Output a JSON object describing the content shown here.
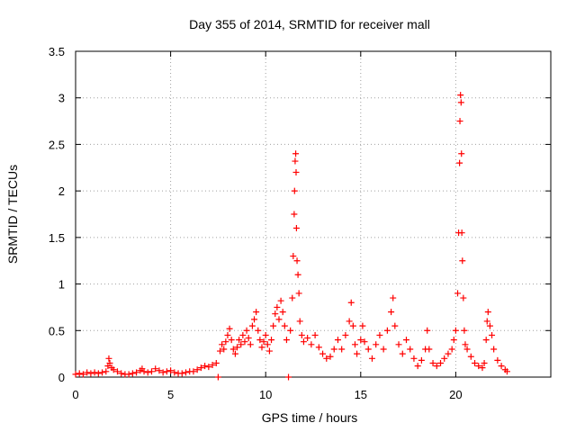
{
  "chart_data": {
    "type": "scatter",
    "title": "Day 355 of 2014, SRMTID for receiver mall",
    "xlabel": "GPS time / hours",
    "ylabel": "SRMTID / TECUs",
    "xlim": [
      0,
      25
    ],
    "ylim": [
      0,
      3.5
    ],
    "xticks": [
      0,
      5,
      10,
      15,
      20
    ],
    "xtick_labels": [
      "0",
      "5",
      "10",
      "15",
      "20"
    ],
    "yticks": [
      0,
      0.5,
      1,
      1.5,
      2,
      2.5,
      3,
      3.5
    ],
    "ytick_labels": [
      "0",
      "0.5",
      "1",
      "1.5",
      "2",
      "2.5",
      "3",
      "3.5"
    ],
    "grid": true,
    "marker": "+",
    "series_color": "#ff0000",
    "series": [
      {
        "name": "SRMTID",
        "points": [
          [
            0.0,
            0.03
          ],
          [
            0.2,
            0.04
          ],
          [
            0.4,
            0.03
          ],
          [
            0.6,
            0.05
          ],
          [
            0.8,
            0.04
          ],
          [
            1.0,
            0.05
          ],
          [
            1.2,
            0.04
          ],
          [
            1.4,
            0.05
          ],
          [
            1.6,
            0.06
          ],
          [
            1.7,
            0.12
          ],
          [
            1.75,
            0.2
          ],
          [
            1.8,
            0.15
          ],
          [
            1.9,
            0.1
          ],
          [
            2.0,
            0.08
          ],
          [
            2.2,
            0.06
          ],
          [
            2.4,
            0.04
          ],
          [
            2.6,
            0.03
          ],
          [
            2.8,
            0.03
          ],
          [
            3.0,
            0.04
          ],
          [
            3.2,
            0.05
          ],
          [
            3.4,
            0.07
          ],
          [
            3.5,
            0.09
          ],
          [
            3.6,
            0.06
          ],
          [
            3.8,
            0.05
          ],
          [
            4.0,
            0.06
          ],
          [
            4.2,
            0.09
          ],
          [
            4.4,
            0.07
          ],
          [
            4.6,
            0.05
          ],
          [
            4.8,
            0.06
          ],
          [
            5.0,
            0.07
          ],
          [
            5.2,
            0.05
          ],
          [
            5.4,
            0.04
          ],
          [
            5.6,
            0.04
          ],
          [
            5.8,
            0.05
          ],
          [
            6.0,
            0.06
          ],
          [
            6.2,
            0.06
          ],
          [
            6.4,
            0.08
          ],
          [
            6.6,
            0.1
          ],
          [
            6.8,
            0.12
          ],
          [
            7.0,
            0.11
          ],
          [
            7.2,
            0.13
          ],
          [
            7.4,
            0.15
          ],
          [
            7.5,
            0.0
          ],
          [
            7.6,
            0.28
          ],
          [
            7.7,
            0.35
          ],
          [
            7.8,
            0.3
          ],
          [
            7.9,
            0.38
          ],
          [
            8.0,
            0.45
          ],
          [
            8.1,
            0.52
          ],
          [
            8.2,
            0.4
          ],
          [
            8.3,
            0.3
          ],
          [
            8.4,
            0.25
          ],
          [
            8.5,
            0.32
          ],
          [
            8.6,
            0.4
          ],
          [
            8.7,
            0.35
          ],
          [
            8.8,
            0.45
          ],
          [
            8.9,
            0.38
          ],
          [
            9.0,
            0.5
          ],
          [
            9.1,
            0.42
          ],
          [
            9.2,
            0.35
          ],
          [
            9.3,
            0.55
          ],
          [
            9.4,
            0.62
          ],
          [
            9.5,
            0.7
          ],
          [
            9.6,
            0.5
          ],
          [
            9.7,
            0.4
          ],
          [
            9.8,
            0.32
          ],
          [
            9.9,
            0.38
          ],
          [
            10.0,
            0.45
          ],
          [
            10.1,
            0.35
          ],
          [
            10.2,
            0.28
          ],
          [
            10.3,
            0.4
          ],
          [
            10.4,
            0.55
          ],
          [
            10.5,
            0.68
          ],
          [
            10.6,
            0.75
          ],
          [
            10.7,
            0.62
          ],
          [
            10.8,
            0.82
          ],
          [
            10.9,
            0.7
          ],
          [
            11.0,
            0.55
          ],
          [
            11.1,
            0.4
          ],
          [
            11.2,
            0.0
          ],
          [
            11.3,
            0.5
          ],
          [
            11.4,
            0.85
          ],
          [
            11.45,
            1.3
          ],
          [
            11.5,
            1.75
          ],
          [
            11.52,
            2.0
          ],
          [
            11.55,
            2.32
          ],
          [
            11.58,
            2.4
          ],
          [
            11.6,
            2.2
          ],
          [
            11.62,
            1.6
          ],
          [
            11.65,
            1.25
          ],
          [
            11.7,
            1.1
          ],
          [
            11.75,
            0.9
          ],
          [
            11.8,
            0.6
          ],
          [
            11.9,
            0.45
          ],
          [
            12.0,
            0.38
          ],
          [
            12.2,
            0.42
          ],
          [
            12.4,
            0.35
          ],
          [
            12.6,
            0.45
          ],
          [
            12.8,
            0.32
          ],
          [
            13.0,
            0.25
          ],
          [
            13.2,
            0.2
          ],
          [
            13.4,
            0.22
          ],
          [
            13.6,
            0.3
          ],
          [
            13.8,
            0.4
          ],
          [
            14.0,
            0.3
          ],
          [
            14.2,
            0.45
          ],
          [
            14.4,
            0.6
          ],
          [
            14.5,
            0.8
          ],
          [
            14.6,
            0.55
          ],
          [
            14.7,
            0.35
          ],
          [
            14.8,
            0.25
          ],
          [
            15.0,
            0.4
          ],
          [
            15.1,
            0.55
          ],
          [
            15.2,
            0.38
          ],
          [
            15.4,
            0.3
          ],
          [
            15.6,
            0.2
          ],
          [
            15.8,
            0.35
          ],
          [
            16.0,
            0.45
          ],
          [
            16.2,
            0.3
          ],
          [
            16.4,
            0.5
          ],
          [
            16.6,
            0.7
          ],
          [
            16.7,
            0.85
          ],
          [
            16.8,
            0.55
          ],
          [
            17.0,
            0.35
          ],
          [
            17.2,
            0.25
          ],
          [
            17.4,
            0.4
          ],
          [
            17.6,
            0.3
          ],
          [
            17.8,
            0.2
          ],
          [
            18.0,
            0.12
          ],
          [
            18.2,
            0.18
          ],
          [
            18.4,
            0.3
          ],
          [
            18.5,
            0.5
          ],
          [
            18.6,
            0.3
          ],
          [
            18.8,
            0.15
          ],
          [
            19.0,
            0.12
          ],
          [
            19.2,
            0.15
          ],
          [
            19.4,
            0.2
          ],
          [
            19.6,
            0.25
          ],
          [
            19.8,
            0.3
          ],
          [
            19.9,
            0.4
          ],
          [
            20.0,
            0.5
          ],
          [
            20.1,
            0.9
          ],
          [
            20.15,
            1.55
          ],
          [
            20.2,
            2.3
          ],
          [
            20.22,
            2.75
          ],
          [
            20.25,
            3.03
          ],
          [
            20.28,
            2.95
          ],
          [
            20.3,
            2.4
          ],
          [
            20.32,
            1.55
          ],
          [
            20.35,
            1.25
          ],
          [
            20.4,
            0.85
          ],
          [
            20.45,
            0.5
          ],
          [
            20.5,
            0.35
          ],
          [
            20.6,
            0.3
          ],
          [
            20.8,
            0.22
          ],
          [
            21.0,
            0.15
          ],
          [
            21.2,
            0.12
          ],
          [
            21.4,
            0.1
          ],
          [
            21.5,
            0.15
          ],
          [
            21.6,
            0.4
          ],
          [
            21.65,
            0.6
          ],
          [
            21.7,
            0.7
          ],
          [
            21.8,
            0.55
          ],
          [
            21.9,
            0.45
          ],
          [
            22.0,
            0.3
          ],
          [
            22.2,
            0.18
          ],
          [
            22.4,
            0.12
          ],
          [
            22.6,
            0.08
          ],
          [
            22.7,
            0.06
          ]
        ]
      }
    ]
  }
}
